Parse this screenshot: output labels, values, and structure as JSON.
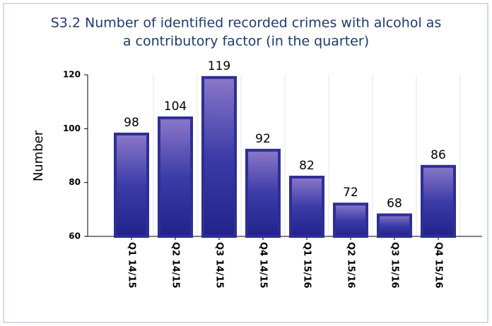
{
  "chart_data": {
    "type": "bar",
    "title": [
      "S3.2 Number of identified recorded crimes with alcohol as",
      "a contributory factor (in the quarter)"
    ],
    "y_label": "Number",
    "categories": [
      "Q1 14/15",
      "Q2 14/15",
      "Q3 14/15",
      "Q4 14/15",
      "Q1 15/16",
      "Q2 15/16",
      "Q3 15/16",
      "Q4 15/16"
    ],
    "values": [
      98,
      104,
      119,
      92,
      82,
      72,
      68,
      86
    ],
    "color": "#2e2e96",
    "ylim": [
      60,
      120
    ],
    "yticks": [
      60,
      80,
      100,
      120
    ],
    "grid": true
  }
}
